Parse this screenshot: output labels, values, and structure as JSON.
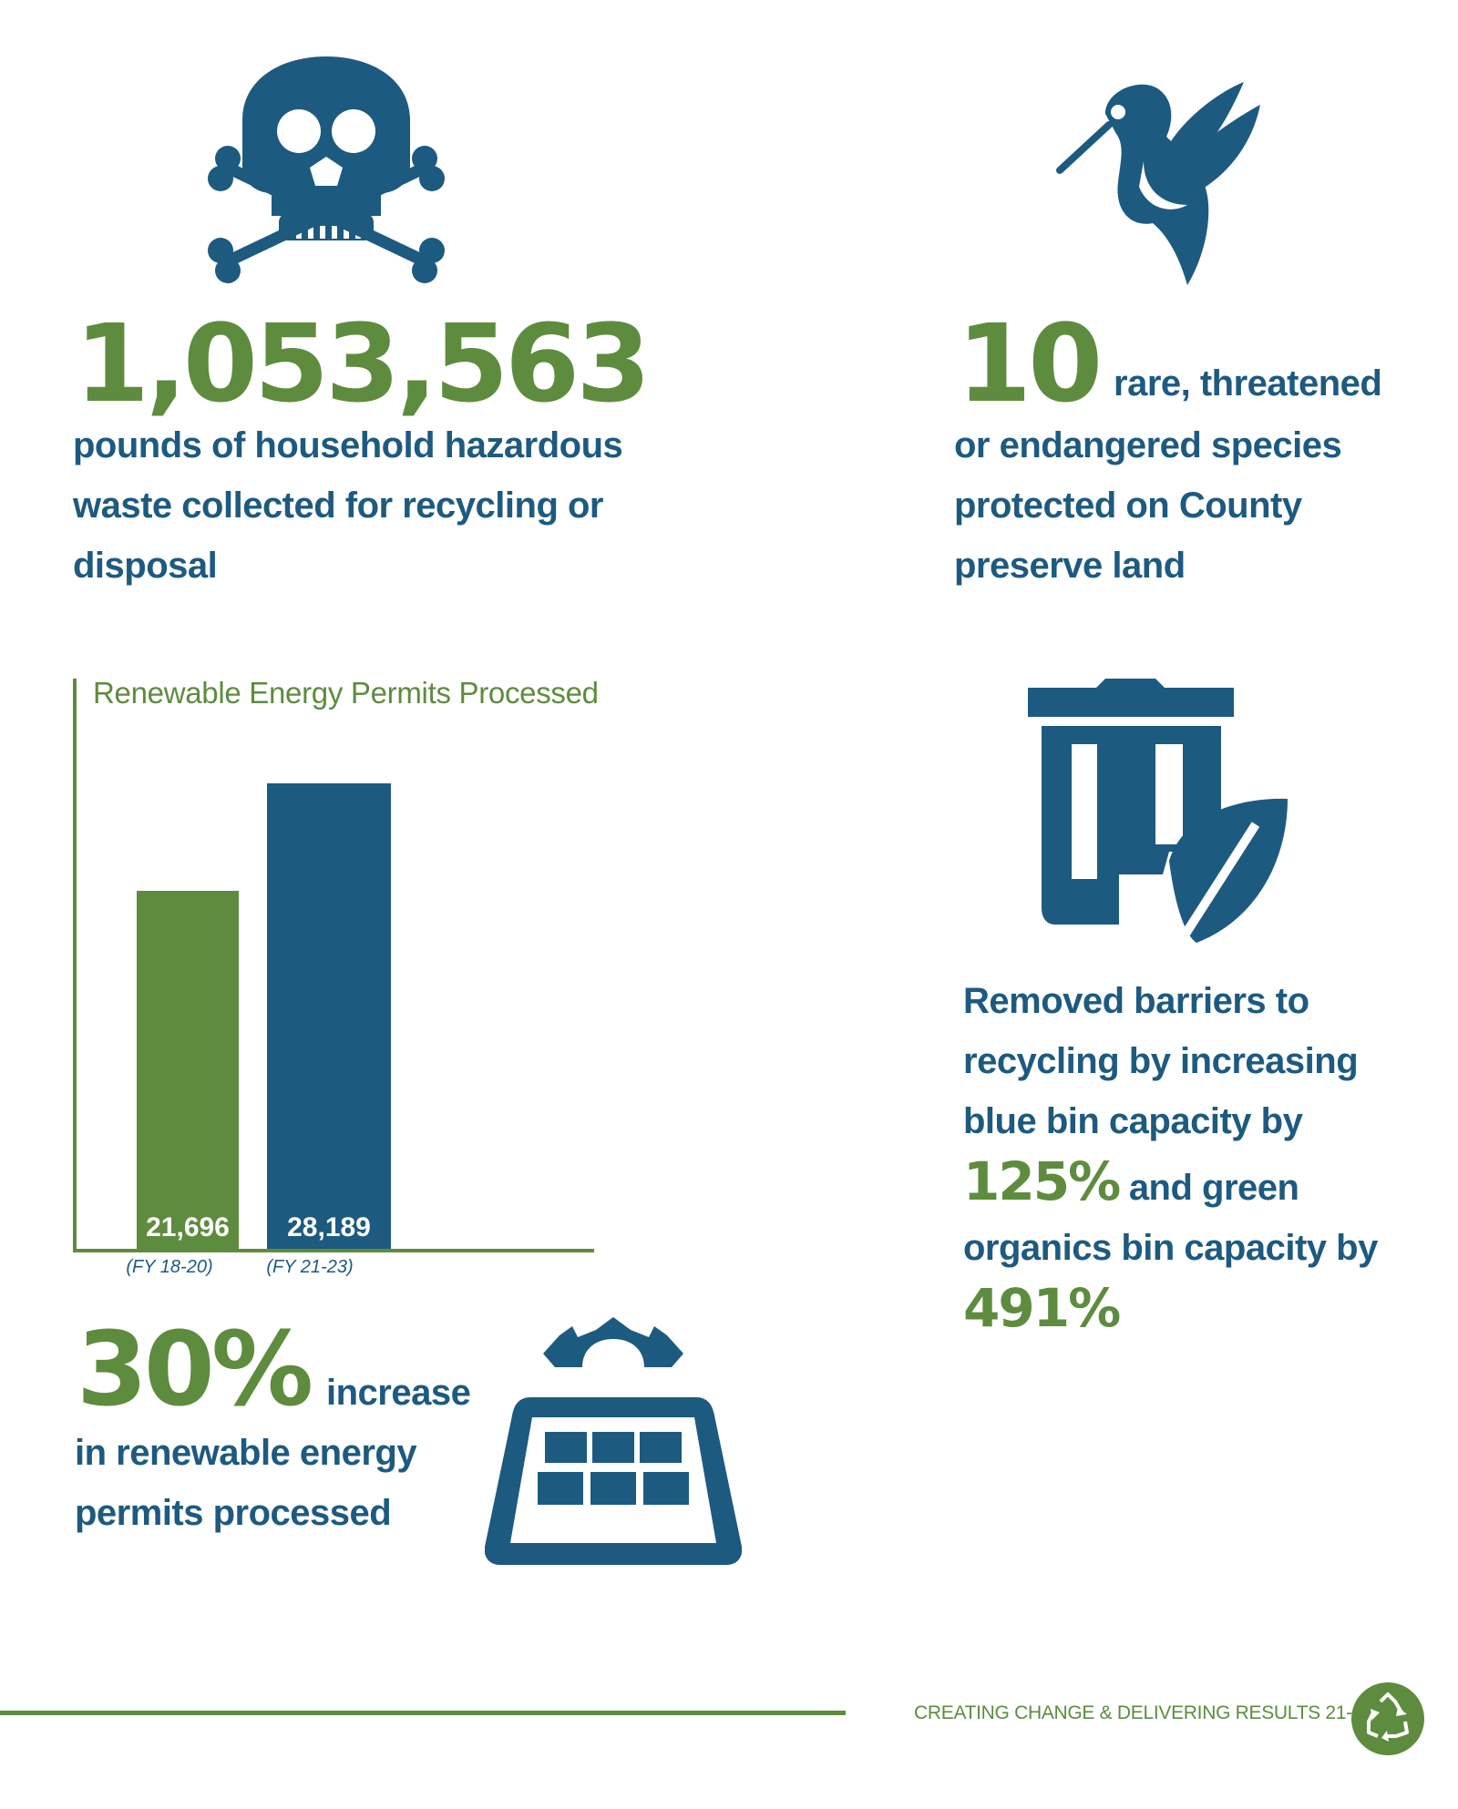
{
  "colors": {
    "blue": "#1d5a80",
    "green": "#5e8c3e",
    "white": "#ffffff"
  },
  "hazardous": {
    "icon": "skull-crossbones-icon",
    "value": "1,053,563",
    "description": [
      "pounds of household hazardous",
      "waste collected for recycling or",
      "disposal"
    ]
  },
  "species": {
    "icon": "hummingbird-icon",
    "value": "10",
    "line1": "rare, threatened",
    "description": [
      "or endangered species",
      "protected on County",
      "preserve land"
    ]
  },
  "bins": {
    "icon": "trash-bin-leaf-icon",
    "line1": "Removed barriers to",
    "line2": "recycling by increasing",
    "line3": "blue bin capacity by",
    "blue_pct": "125%",
    "line4": "and green",
    "line5": "organics bin capacity by",
    "green_pct": "491%"
  },
  "renewable": {
    "icon": "solar-panel-icon",
    "value": "30%",
    "line1": "increase",
    "description": [
      "in renewable energy",
      "permits processed"
    ]
  },
  "chart_data": {
    "type": "bar",
    "title": "Renewable Energy Permits Processed",
    "categories": [
      "(FY 18-20)",
      "(FY 21-23)"
    ],
    "values": [
      21696,
      28189
    ],
    "value_labels": [
      "21,696",
      "28,189"
    ],
    "bar_colors": [
      "#5e8c3e",
      "#1d5a80"
    ],
    "ylim": [
      0,
      31500
    ],
    "grid": false
  },
  "footer": {
    "text": "CREATING CHANGE & DELIVERING RESULTS 21-23",
    "icon": "recycle-icon"
  }
}
